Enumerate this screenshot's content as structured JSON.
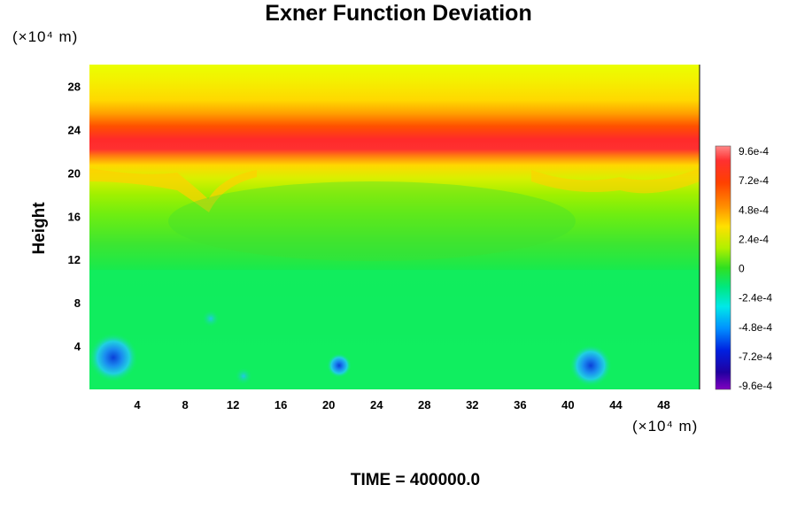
{
  "chart_data": {
    "type": "heatmap",
    "title": "Exner Function Deviation",
    "ylabel": "Height",
    "xlabel": "",
    "x_unit": "(×10⁴ m)",
    "y_unit": "(×10⁴ m)",
    "xlim": [
      0,
      51
    ],
    "ylim": [
      0,
      30
    ],
    "x_ticks": [
      4,
      8,
      12,
      16,
      20,
      24,
      28,
      32,
      36,
      40,
      44,
      48
    ],
    "y_ticks": [
      4,
      8,
      12,
      16,
      20,
      24,
      28
    ],
    "colorbar": {
      "min": -0.00096,
      "max": 0.00096,
      "tick_labels": [
        "9.6e-4",
        "7.2e-4",
        "4.8e-4",
        "2.4e-4",
        "0",
        "-2.4e-4",
        "-4.8e-4",
        "-7.2e-4",
        "-9.6e-4"
      ]
    },
    "annotation": "TIME = 400000.0",
    "field_description": {
      "max_band_height": 22,
      "near_zero_region": "heights 0-18",
      "negative_minima": [
        {
          "x": 2,
          "y": 3,
          "value": -0.00042
        },
        {
          "x": 21,
          "y": 2.2,
          "value": -0.00038
        },
        {
          "x": 42,
          "y": 2.2,
          "value": -0.00055
        }
      ]
    }
  }
}
